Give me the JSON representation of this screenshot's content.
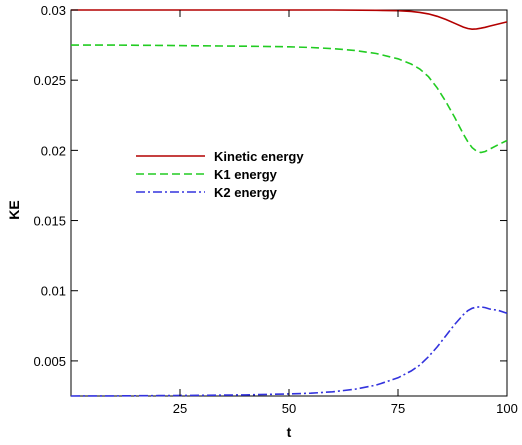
{
  "chart_data": {
    "type": "line",
    "title": "",
    "xlabel": "t",
    "ylabel": "KE",
    "xlim": [
      0,
      100
    ],
    "ylim": [
      0.0025,
      0.03
    ],
    "x_ticks": [
      25,
      50,
      75,
      100
    ],
    "y_ticks": [
      0.005,
      0.01,
      0.015,
      0.02,
      0.025,
      0.03
    ],
    "x_tick_labels": [
      "25",
      "50",
      "75",
      "100"
    ],
    "y_tick_labels": [
      "0.005",
      "0.01",
      "0.015",
      "0.02",
      "0.025",
      "0.03"
    ],
    "grid": false,
    "legend_position": "center-left",
    "series": [
      {
        "name": "Kinetic energy",
        "color": "#b30000",
        "dash": "solid",
        "x": [
          0,
          10,
          20,
          30,
          40,
          50,
          60,
          70,
          75,
          78,
          80,
          82,
          84,
          86,
          88,
          90,
          91,
          92,
          93,
          94,
          95,
          96,
          98,
          100
        ],
        "y": [
          0.03,
          0.03,
          0.03,
          0.03,
          0.03,
          0.03,
          0.03,
          0.02998,
          0.02995,
          0.0299,
          0.02983,
          0.02972,
          0.02955,
          0.02932,
          0.02905,
          0.02878,
          0.02868,
          0.02863,
          0.02865,
          0.0287,
          0.02877,
          0.02885,
          0.029,
          0.02915
        ]
      },
      {
        "name": "K1 energy",
        "color": "#22cc22",
        "dash": "dashed",
        "x": [
          0,
          10,
          20,
          30,
          40,
          50,
          55,
          60,
          65,
          70,
          75,
          78,
          80,
          82,
          84,
          86,
          88,
          90,
          91,
          92,
          93,
          94,
          95,
          96,
          98,
          100
        ],
        "y": [
          0.0275,
          0.0275,
          0.02748,
          0.02745,
          0.02742,
          0.02738,
          0.02733,
          0.02725,
          0.02712,
          0.0269,
          0.02652,
          0.02615,
          0.0258,
          0.02525,
          0.02445,
          0.02345,
          0.02235,
          0.02115,
          0.02062,
          0.0202,
          0.01995,
          0.01985,
          0.01992,
          0.02008,
          0.0204,
          0.0207
        ]
      },
      {
        "name": "K2 energy",
        "color": "#3333dd",
        "dash": "dashdot",
        "x": [
          0,
          10,
          20,
          30,
          40,
          50,
          55,
          60,
          65,
          70,
          75,
          78,
          80,
          82,
          84,
          86,
          88,
          90,
          91,
          92,
          93,
          94,
          95,
          96,
          98,
          100
        ],
        "y": [
          0.0025,
          0.00251,
          0.00253,
          0.00255,
          0.00258,
          0.00265,
          0.0027,
          0.0028,
          0.00298,
          0.00328,
          0.0038,
          0.00428,
          0.0047,
          0.0053,
          0.006,
          0.0068,
          0.0076,
          0.0083,
          0.00858,
          0.00875,
          0.00883,
          0.00885,
          0.0088,
          0.0087,
          0.0086,
          0.0084
        ]
      }
    ]
  }
}
